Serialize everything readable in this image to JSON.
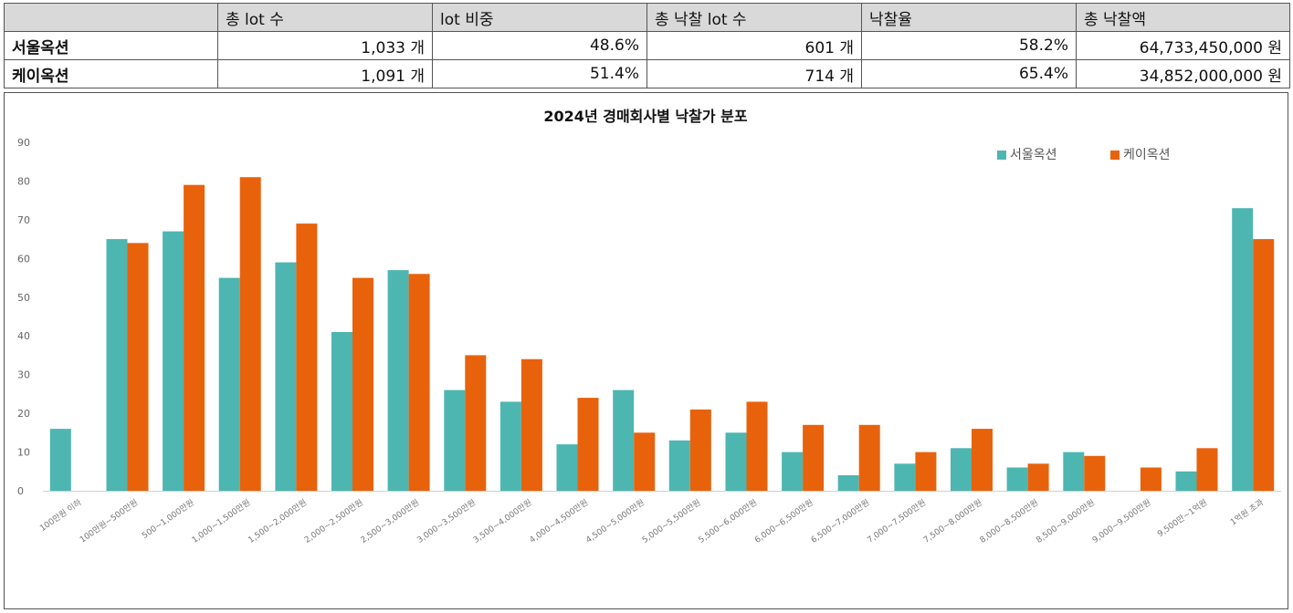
{
  "table": {
    "headers": [
      "",
      "총 lot 수",
      "lot 비중",
      "총 낙찰 lot 수",
      "낙찰율",
      "총 낙찰액"
    ],
    "rows": [
      {
        "name": "서울옥션",
        "cells": [
          "1,033 개",
          "48.6%",
          "601 개",
          "58.2%",
          "64,733,450,000 원"
        ]
      },
      {
        "name": "케이옥션",
        "cells": [
          "1,091 개",
          "51.4%",
          "714 개",
          "65.4%",
          "34,852,000,000 원"
        ]
      }
    ]
  },
  "chart_data": {
    "type": "bar",
    "title": "2024년 경매회사별 낙찰가 분포",
    "xlabel": "",
    "ylabel": "",
    "ylim": [
      0,
      90
    ],
    "yticks": [
      0,
      10,
      20,
      30,
      40,
      50,
      60,
      70,
      80,
      90
    ],
    "grid": false,
    "legend": "top-right",
    "categories": [
      "100만원 이하",
      "100만원~500만원",
      "500~1,000만원",
      "1,000~1,500만원",
      "1,500~2,000만원",
      "2,000~2,500만원",
      "2,500~3,000만원",
      "3,000~3,500만원",
      "3,500~4,000만원",
      "4,000~4,500만원",
      "4,500~5,000만원",
      "5,000~5,500만원",
      "5,500~6,000만원",
      "6,000~6,500만원",
      "6,500~7,000만원",
      "7,000~7,500만원",
      "7,500~8,000만원",
      "8,000~8,500만원",
      "8,500~9,000만원",
      "9,000~9,500만원",
      "9,500만~1억원",
      "1억원 초과"
    ],
    "series": [
      {
        "name": "서울옥션",
        "color": "#4db6b1",
        "values": [
          16,
          65,
          67,
          55,
          59,
          41,
          57,
          26,
          23,
          12,
          26,
          13,
          15,
          10,
          4,
          7,
          11,
          6,
          10,
          0,
          5,
          73
        ]
      },
      {
        "name": "케이옥션",
        "color": "#e8620c",
        "values": [
          0,
          64,
          79,
          81,
          69,
          55,
          56,
          35,
          34,
          24,
          15,
          21,
          23,
          17,
          17,
          10,
          16,
          7,
          9,
          6,
          11,
          65
        ]
      }
    ]
  }
}
